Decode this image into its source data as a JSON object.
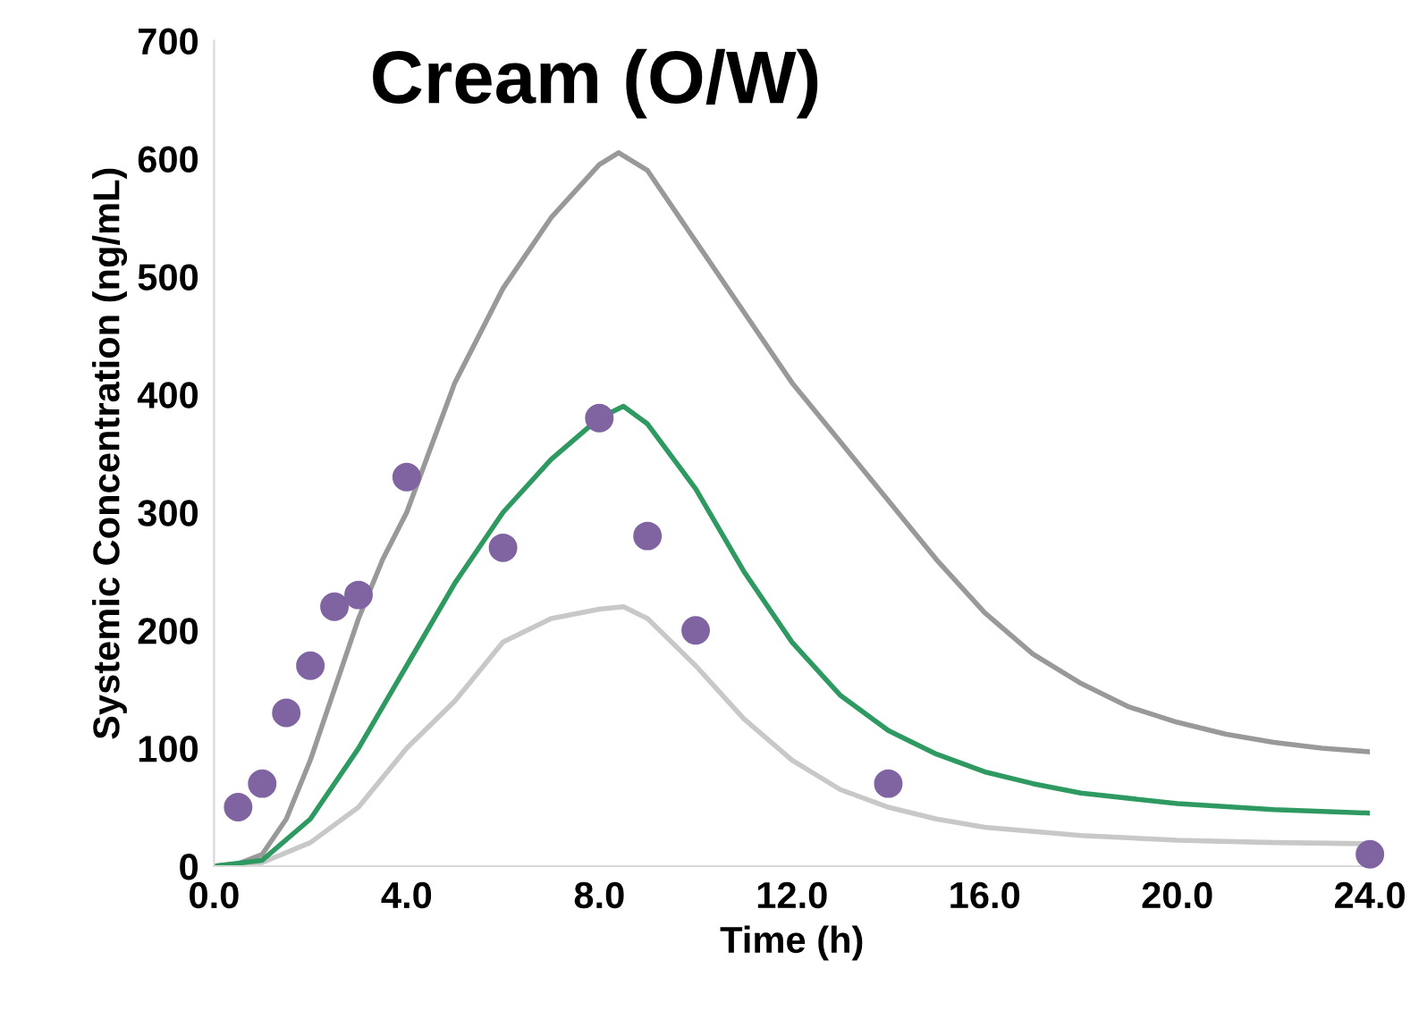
{
  "chart_data": {
    "type": "line",
    "title": "Cream (O/W)",
    "xlabel": "Time (h)",
    "ylabel": "Systemic Concentration (ng/mL)",
    "xlim": [
      0,
      24
    ],
    "ylim": [
      0,
      700
    ],
    "xticks": [
      {
        "value": 0,
        "label": "0.0"
      },
      {
        "value": 4,
        "label": "4.0"
      },
      {
        "value": 8,
        "label": "8.0"
      },
      {
        "value": 12,
        "label": "12.0"
      },
      {
        "value": 16,
        "label": "16.0"
      },
      {
        "value": 20,
        "label": "20.0"
      },
      {
        "value": 24,
        "label": "24.0"
      }
    ],
    "yticks": [
      0,
      100,
      200,
      300,
      400,
      500,
      600,
      700
    ],
    "grid": false,
    "legend": false,
    "series": [
      {
        "color": "#999999",
        "x": [
          0,
          0.5,
          1,
          1.5,
          2,
          2.5,
          3,
          3.5,
          4,
          5,
          6,
          7,
          8,
          8.4,
          9,
          10,
          11,
          12,
          13,
          14,
          15,
          16,
          17,
          18,
          19,
          20,
          21,
          22,
          23,
          24
        ],
        "values": [
          0,
          2,
          10,
          40,
          90,
          150,
          210,
          260,
          300,
          410,
          490,
          550,
          595,
          605,
          590,
          530,
          470,
          410,
          360,
          310,
          260,
          215,
          180,
          155,
          135,
          122,
          112,
          105,
          100,
          97
        ]
      },
      {
        "color": "#c8c8c8",
        "x": [
          0,
          1,
          2,
          3,
          4,
          5,
          6,
          7,
          8,
          8.5,
          9,
          10,
          11,
          12,
          13,
          14,
          15,
          16,
          18,
          20,
          22,
          24
        ],
        "values": [
          0,
          3,
          20,
          50,
          100,
          140,
          190,
          210,
          218,
          220,
          210,
          170,
          125,
          90,
          65,
          50,
          40,
          33,
          26,
          22,
          20,
          19
        ]
      },
      {
        "color": "#2e9a62",
        "x": [
          0,
          1,
          2,
          3,
          4,
          5,
          6,
          7,
          8,
          8.5,
          9,
          10,
          11,
          12,
          13,
          14,
          15,
          16,
          17,
          18,
          20,
          22,
          24
        ],
        "values": [
          0,
          5,
          40,
          100,
          170,
          240,
          300,
          345,
          380,
          390,
          375,
          320,
          250,
          190,
          145,
          115,
          95,
          80,
          70,
          62,
          53,
          48,
          45
        ]
      },
      {
        "type": "scatter",
        "color": "#8064a2",
        "marker": "circle",
        "x": [
          0.5,
          1,
          1.5,
          2,
          2.5,
          3,
          4,
          6,
          8,
          9,
          10,
          14,
          24
        ],
        "values": [
          50,
          70,
          130,
          170,
          220,
          230,
          330,
          270,
          380,
          280,
          200,
          70,
          10
        ]
      }
    ]
  }
}
